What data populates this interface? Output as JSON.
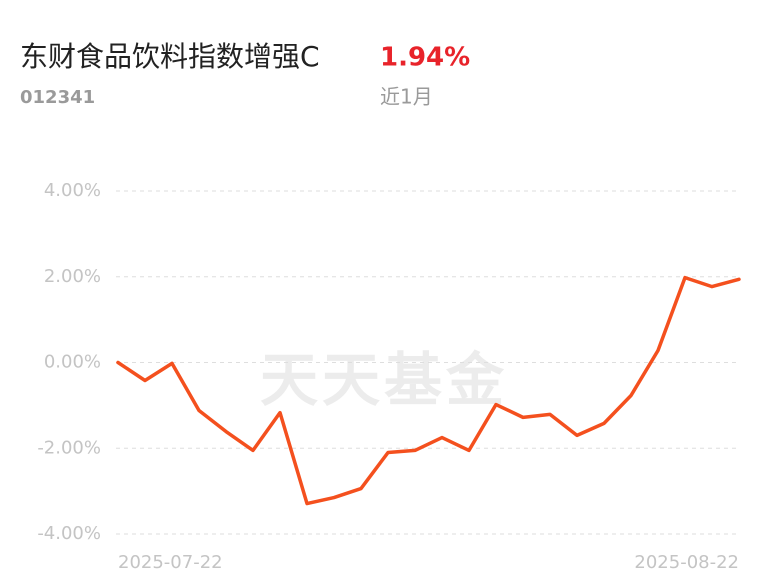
{
  "chart_data": {
    "type": "line",
    "title": "东财食品饮料指数增强C",
    "return_text": "1.94%",
    "code": "012341",
    "period": "近1月",
    "watermark": "天天基金",
    "categories": [
      "2025-07-22",
      null,
      null,
      null,
      null,
      null,
      null,
      null,
      null,
      null,
      null,
      null,
      null,
      null,
      null,
      null,
      null,
      null,
      null,
      null,
      null,
      null,
      null,
      "2025-08-22"
    ],
    "values": [
      0.0,
      -0.42,
      -0.02,
      -1.12,
      -1.61,
      -2.05,
      -1.17,
      -3.29,
      -3.15,
      -2.94,
      -2.1,
      -2.05,
      -1.75,
      -2.05,
      -0.98,
      -1.28,
      -1.21,
      -1.7,
      -1.42,
      -0.77,
      0.28,
      1.98,
      1.77,
      1.94
    ],
    "color": "#f4501e",
    "ylim": [
      -4,
      4
    ],
    "yticks": [
      {
        "value": -4,
        "label": "-4.00%"
      },
      {
        "value": -2,
        "label": "-2.00%"
      },
      {
        "value": 0,
        "label": "0.00%"
      },
      {
        "value": 2,
        "label": "2.00%"
      },
      {
        "value": 4,
        "label": "4.00%"
      }
    ],
    "grid": true
  }
}
